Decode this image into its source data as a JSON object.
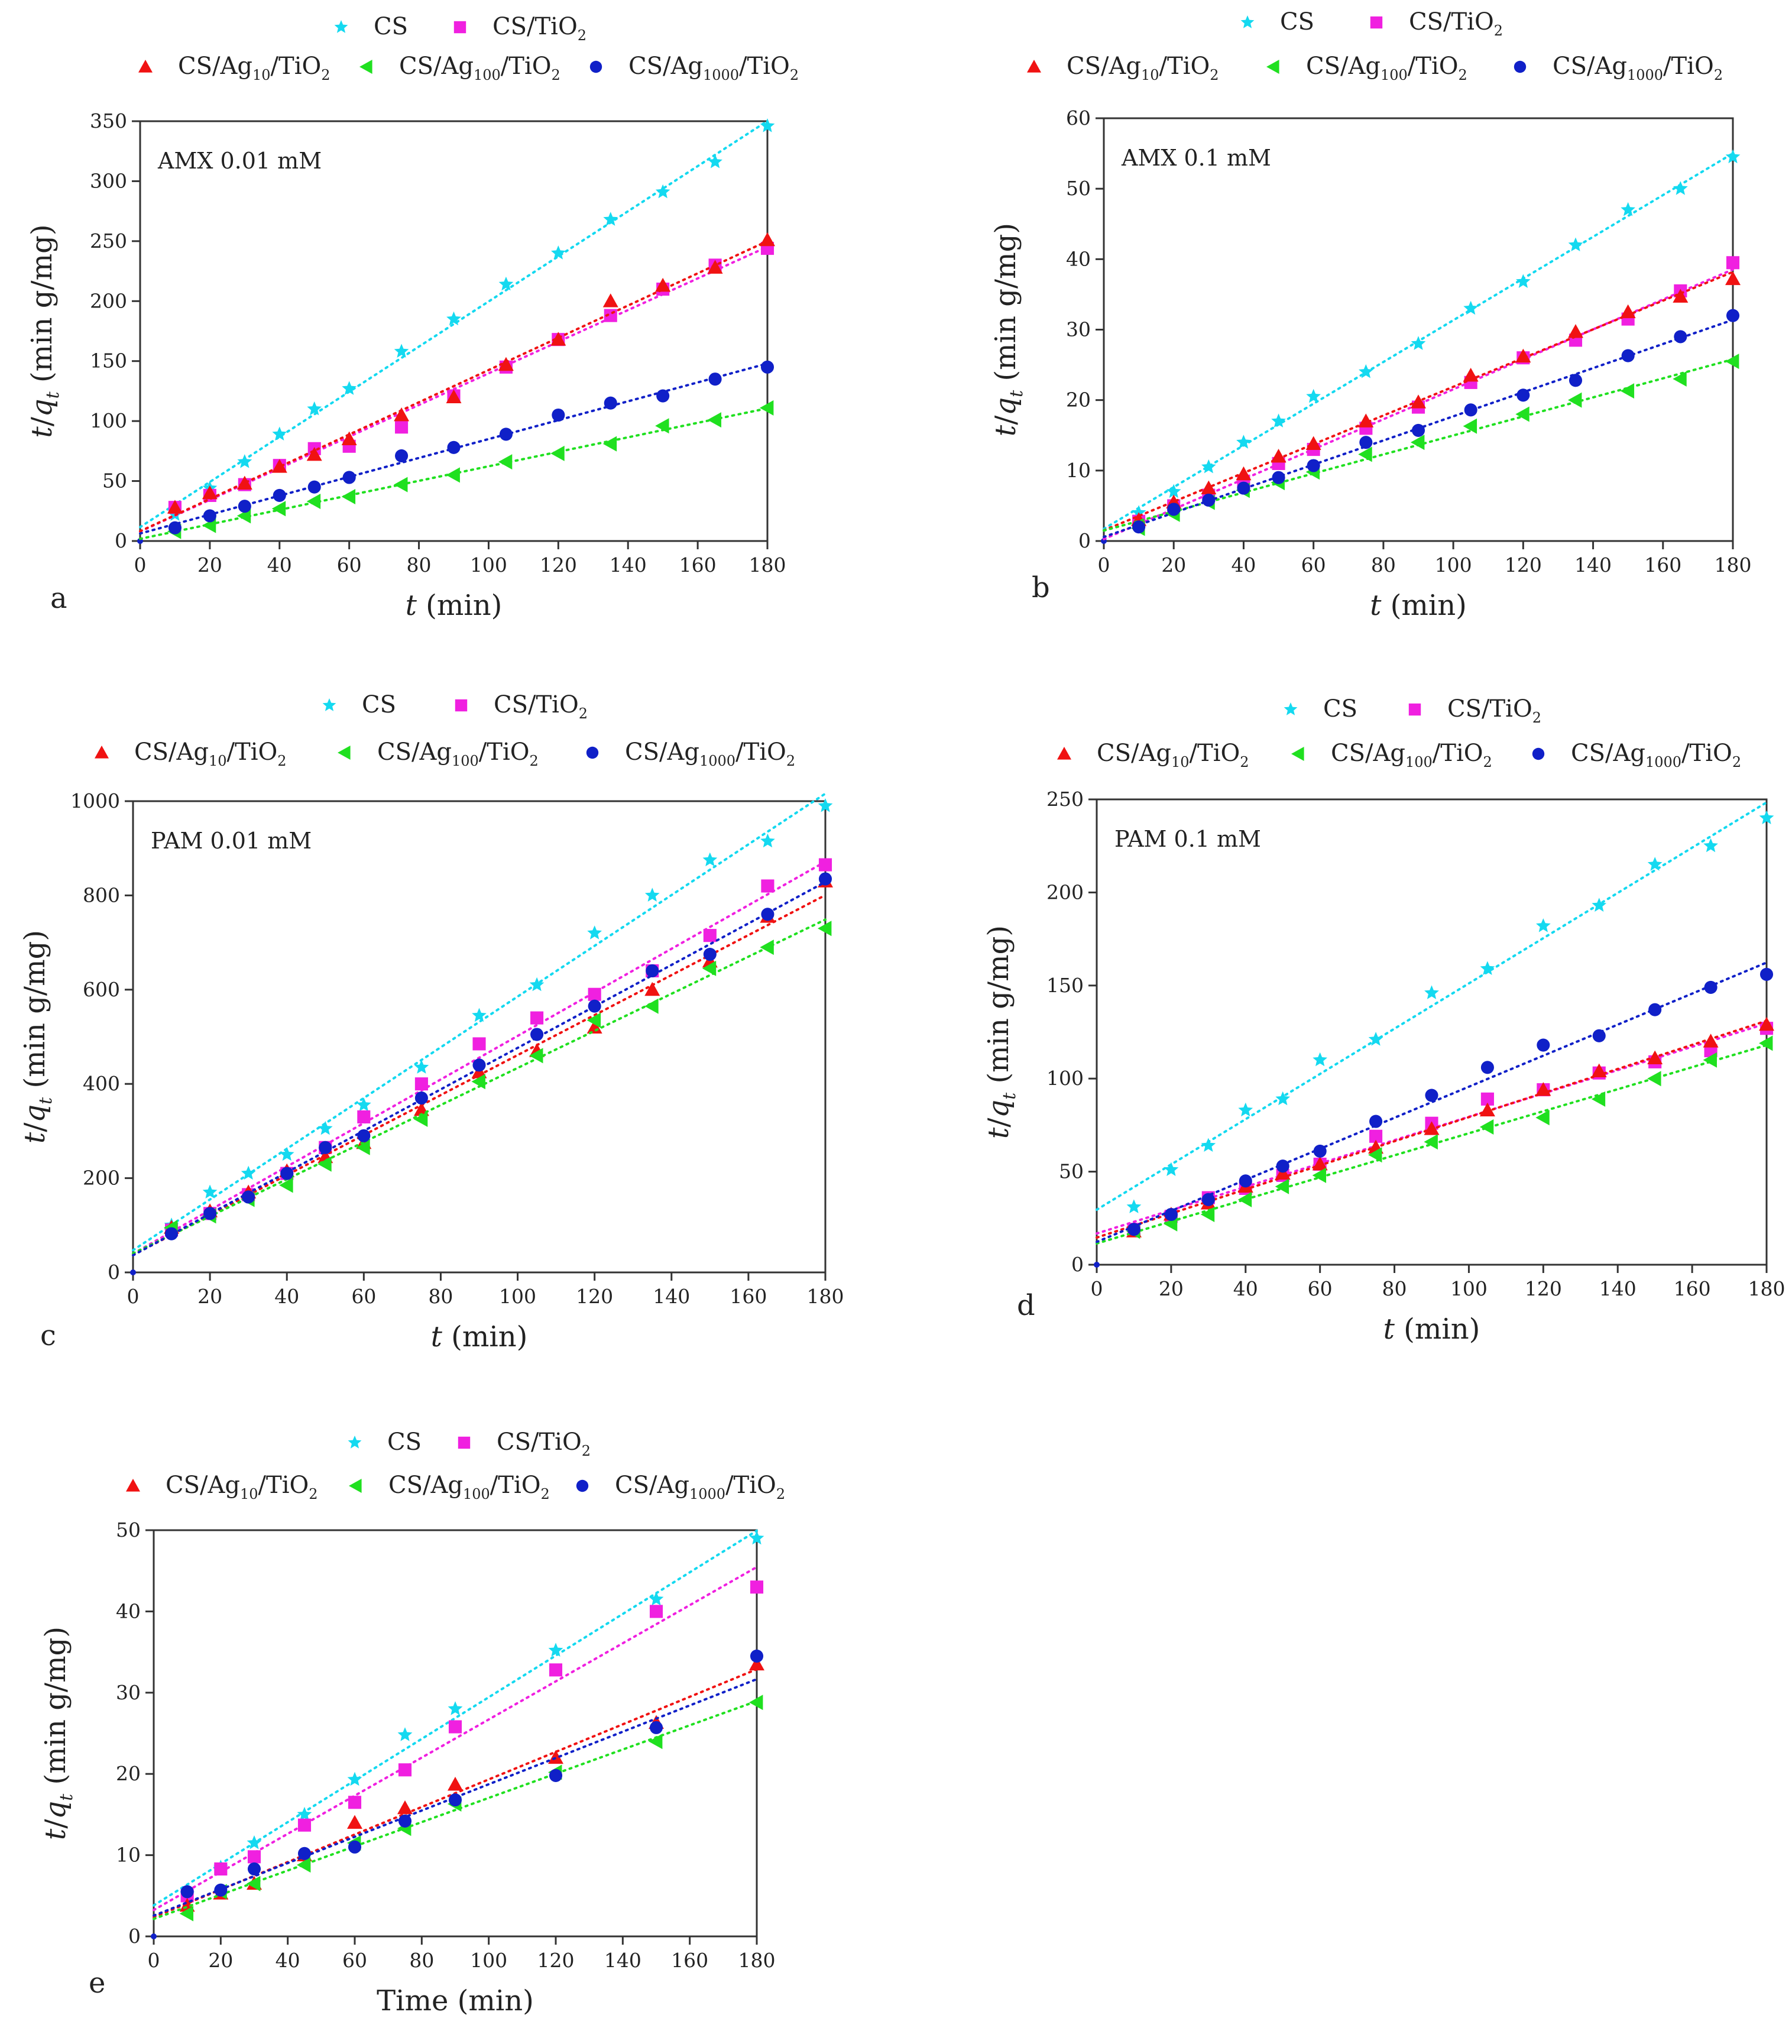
{
  "colors": {
    "CS": "#14d9f0",
    "CS/TiO2": "#f020e0",
    "CS/Ag10/TiO2": "#f01212",
    "CS/Ag100/TiO2": "#20e020",
    "CS/Ag1000/TiO2": "#1020c8"
  },
  "chart_data": [
    {
      "type": "scatter",
      "panel_label": "a",
      "annotation": "AMX 0.01 mM",
      "xlabel": "t (min)",
      "ylabel": "t/q_t (min g/mg)",
      "xlim": [
        0,
        180
      ],
      "ylim": [
        0,
        350
      ],
      "xticks": [
        "0",
        "20",
        "40",
        "60",
        "80",
        "100",
        "120",
        "140",
        "160",
        "180"
      ],
      "yticks": [
        "0",
        "50",
        "100",
        "150",
        "200",
        "250",
        "300",
        "350"
      ],
      "fit_lines": true,
      "x": [
        10,
        20,
        30,
        40,
        50,
        60,
        75,
        90,
        105,
        120,
        135,
        150,
        165,
        180
      ],
      "series": [
        {
          "name": "CS",
          "marker": "star",
          "values": [
            22,
            44,
            66,
            89,
            110,
            127,
            158,
            185,
            214,
            240,
            268,
            291,
            316,
            346
          ]
        },
        {
          "name": "CS/TiO2",
          "marker": "square",
          "values": [
            28,
            38,
            47,
            63,
            77,
            79,
            95,
            121,
            145,
            168,
            188,
            210,
            230,
            244
          ]
        },
        {
          "name": "CS/Ag10/TiO2",
          "marker": "triangle-up",
          "values": [
            28,
            40,
            48,
            62,
            72,
            85,
            105,
            120,
            147,
            168,
            200,
            213,
            228,
            251
          ]
        },
        {
          "name": "CS/Ag100/TiO2",
          "marker": "triangle-left",
          "values": [
            8,
            13,
            21,
            27,
            33,
            37,
            47,
            55,
            66,
            73,
            81,
            96,
            101,
            111
          ]
        },
        {
          "name": "CS/Ag1000/TiO2",
          "marker": "circle",
          "values": [
            11,
            21,
            29,
            38,
            45,
            53,
            71,
            78,
            89,
            105,
            115,
            121,
            135,
            145
          ]
        }
      ]
    },
    {
      "type": "scatter",
      "panel_label": "b",
      "annotation": "AMX 0.1 mM",
      "xlabel": "t (min)",
      "ylabel": "t/q_t (min g/mg)",
      "xlim": [
        0,
        180
      ],
      "ylim": [
        0,
        60
      ],
      "xticks": [
        "0",
        "20",
        "40",
        "60",
        "80",
        "100",
        "120",
        "140",
        "160",
        "180"
      ],
      "yticks": [
        "0",
        "10",
        "20",
        "30",
        "40",
        "50",
        "60"
      ],
      "fit_lines": true,
      "x": [
        10,
        20,
        30,
        40,
        50,
        60,
        75,
        90,
        105,
        120,
        135,
        150,
        165,
        180
      ],
      "series": [
        {
          "name": "CS",
          "marker": "star",
          "values": [
            4,
            7,
            10.5,
            14,
            17,
            20.5,
            24,
            28,
            33,
            36.8,
            42,
            47,
            50,
            54.5
          ]
        },
        {
          "name": "CS/TiO2",
          "marker": "square",
          "values": [
            2.8,
            5,
            6.5,
            8.5,
            11,
            13,
            16,
            19,
            22.5,
            26,
            28.5,
            31.5,
            35.5,
            39.5
          ]
        },
        {
          "name": "CS/Ag10/TiO2",
          "marker": "triangle-up",
          "values": [
            3,
            5.5,
            7.5,
            9.5,
            12,
            13.8,
            17,
            19.7,
            23.5,
            26.2,
            29.7,
            32.5,
            34.7,
            37.2
          ]
        },
        {
          "name": "CS/Ag100/TiO2",
          "marker": "triangle-left",
          "values": [
            1.8,
            3.8,
            5.5,
            7.2,
            8.3,
            9.8,
            12.3,
            14,
            16.3,
            18,
            20,
            21.3,
            23,
            25.5
          ]
        },
        {
          "name": "CS/Ag1000/TiO2",
          "marker": "circle",
          "values": [
            2,
            4.5,
            5.8,
            7.5,
            9,
            10.7,
            14,
            15.7,
            18.6,
            20.7,
            22.8,
            26.3,
            29,
            32
          ]
        }
      ]
    },
    {
      "type": "scatter",
      "panel_label": "c",
      "annotation": "PAM 0.01 mM",
      "xlabel": "t (min)",
      "ylabel": "t/q_t (min g/mg)",
      "xlim": [
        0,
        180
      ],
      "ylim": [
        0,
        1000
      ],
      "xticks": [
        "0",
        "20",
        "40",
        "60",
        "80",
        "100",
        "120",
        "140",
        "160",
        "180"
      ],
      "yticks": [
        "0",
        "200",
        "400",
        "600",
        "800",
        "1000"
      ],
      "fit_lines": true,
      "x": [
        10,
        20,
        30,
        40,
        50,
        60,
        75,
        90,
        105,
        120,
        135,
        150,
        165,
        180
      ],
      "series": [
        {
          "name": "CS",
          "marker": "star",
          "values": [
            100,
            170,
            210,
            250,
            305,
            355,
            435,
            545,
            610,
            720,
            800,
            875,
            915,
            990
          ]
        },
        {
          "name": "CS/TiO2",
          "marker": "square",
          "values": [
            90,
            125,
            165,
            210,
            265,
            330,
            400,
            485,
            540,
            590,
            640,
            715,
            820,
            865
          ]
        },
        {
          "name": "CS/Ag10/TiO2",
          "marker": "triangle-up",
          "values": [
            95,
            130,
            170,
            215,
            245,
            275,
            345,
            425,
            470,
            520,
            600,
            660,
            755,
            830
          ]
        },
        {
          "name": "CS/Ag100/TiO2",
          "marker": "triangle-left",
          "values": [
            95,
            120,
            155,
            185,
            230,
            265,
            325,
            405,
            460,
            535,
            565,
            645,
            690,
            730
          ]
        },
        {
          "name": "CS/Ag1000/TiO2",
          "marker": "circle",
          "values": [
            82,
            125,
            160,
            210,
            265,
            290,
            370,
            440,
            505,
            565,
            640,
            675,
            760,
            835
          ]
        }
      ]
    },
    {
      "type": "scatter",
      "panel_label": "d",
      "annotation": "PAM 0.1 mM",
      "xlabel": "t (min)",
      "ylabel": "t/q_t (min g/mg)",
      "xlim": [
        0,
        180
      ],
      "ylim": [
        0,
        250
      ],
      "xticks": [
        "0",
        "20",
        "40",
        "60",
        "80",
        "100",
        "120",
        "140",
        "160",
        "180"
      ],
      "yticks": [
        "0",
        "50",
        "100",
        "150",
        "200",
        "250"
      ],
      "fit_lines": true,
      "x": [
        10,
        20,
        30,
        40,
        50,
        60,
        75,
        90,
        105,
        120,
        135,
        150,
        165,
        180
      ],
      "series": [
        {
          "name": "CS",
          "marker": "star",
          "values": [
            31,
            51,
            64,
            83,
            89,
            110,
            121,
            146,
            159,
            182,
            193,
            215,
            225,
            240
          ]
        },
        {
          "name": "CS/TiO2",
          "marker": "square",
          "values": [
            19,
            26,
            36,
            41,
            48,
            54,
            69,
            76,
            89,
            94,
            103,
            109,
            115,
            127
          ]
        },
        {
          "name": "CS/Ag10/TiO2",
          "marker": "triangle-up",
          "values": [
            18,
            27,
            33,
            42,
            49,
            54,
            63,
            73,
            83,
            94,
            104,
            111,
            120,
            129
          ]
        },
        {
          "name": "CS/Ag100/TiO2",
          "marker": "triangle-left",
          "values": [
            18,
            22,
            27,
            35,
            42,
            48,
            59,
            66,
            74,
            79,
            89,
            100,
            110,
            119
          ]
        },
        {
          "name": "CS/Ag1000/TiO2",
          "marker": "circle",
          "values": [
            19,
            27,
            35,
            45,
            53,
            61,
            77,
            91,
            106,
            118,
            123,
            137,
            149,
            156
          ]
        }
      ]
    },
    {
      "type": "scatter",
      "panel_label": "e",
      "annotation": "",
      "xlabel": "Time (min)",
      "ylabel": "t/q_t (min g/mg)",
      "xlim": [
        0,
        180
      ],
      "ylim": [
        0,
        50
      ],
      "xticks": [
        "0",
        "20",
        "40",
        "60",
        "80",
        "100",
        "120",
        "140",
        "160",
        "180"
      ],
      "yticks": [
        "0",
        "10",
        "20",
        "30",
        "40",
        "50"
      ],
      "fit_lines": true,
      "x": [
        10,
        20,
        30,
        45,
        60,
        75,
        90,
        120,
        150,
        180
      ],
      "series": [
        {
          "name": "CS",
          "marker": "star",
          "values": [
            5.2,
            8.5,
            11.5,
            15,
            19.3,
            24.8,
            28,
            35.2,
            41.5,
            49
          ]
        },
        {
          "name": "CS/TiO2",
          "marker": "square",
          "values": [
            5,
            8.3,
            9.8,
            13.7,
            16.5,
            20.5,
            25.8,
            32.8,
            40,
            43
          ]
        },
        {
          "name": "CS/Ag10/TiO2",
          "marker": "triangle-up",
          "values": [
            3.8,
            5.3,
            6.5,
            10,
            14,
            15.8,
            18.7,
            22,
            26.3,
            33.5
          ]
        },
        {
          "name": "CS/Ag100/TiO2",
          "marker": "triangle-left",
          "values": [
            2.8,
            5.5,
            6.5,
            8.8,
            11.5,
            13.3,
            16.3,
            20.2,
            24,
            28.8
          ]
        },
        {
          "name": "CS/Ag1000/TiO2",
          "marker": "circle",
          "values": [
            5.5,
            5.7,
            8.3,
            10.2,
            11,
            14.2,
            16.8,
            19.8,
            25.7,
            34.5
          ]
        }
      ]
    }
  ]
}
